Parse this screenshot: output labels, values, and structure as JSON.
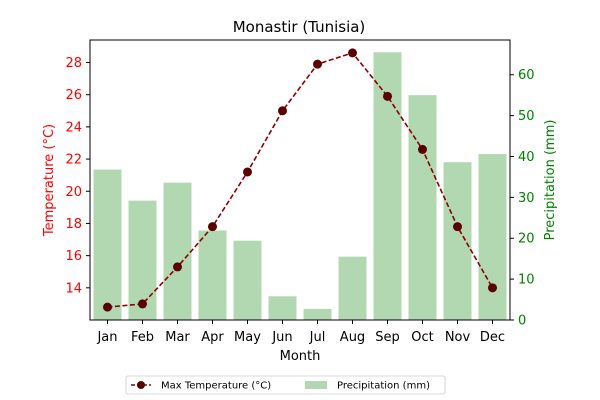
{
  "chart_data": {
    "type": "bar+line",
    "title": "Monastir (Tunisia)",
    "xlabel": "Month",
    "ylabel_left": "Temperature (°C)",
    "ylabel_right": "Precipitation (mm)",
    "categories": [
      "Jan",
      "Feb",
      "Mar",
      "Apr",
      "May",
      "Jun",
      "Jul",
      "Aug",
      "Sep",
      "Oct",
      "Nov",
      "Dec"
    ],
    "y_left_lim": [
      12,
      29.4
    ],
    "y_left_ticks": [
      14,
      16,
      18,
      20,
      22,
      24,
      26,
      28
    ],
    "y_right_lim": [
      0,
      68.5
    ],
    "y_right_ticks": [
      0,
      10,
      20,
      30,
      40,
      50,
      60
    ],
    "grid": false,
    "legend_position": "bottom-center",
    "series": [
      {
        "name": "Max Temperature (°C)",
        "kind": "line",
        "axis": "left",
        "color": "#8b0000",
        "marker_color": "#5a0000",
        "values": [
          12.8,
          13.0,
          15.3,
          17.8,
          21.2,
          25.0,
          27.9,
          28.6,
          25.9,
          22.6,
          17.8,
          14.0
        ]
      },
      {
        "name": "Precipitation (mm)",
        "kind": "bar",
        "axis": "right",
        "color": "#b2d8b2",
        "values": [
          36.8,
          29.2,
          33.6,
          21.9,
          19.4,
          5.8,
          2.7,
          15.5,
          65.5,
          55.0,
          38.6,
          40.6
        ]
      }
    ],
    "colors": {
      "left_axis": "#ff0000",
      "right_axis": "#008000"
    }
  }
}
